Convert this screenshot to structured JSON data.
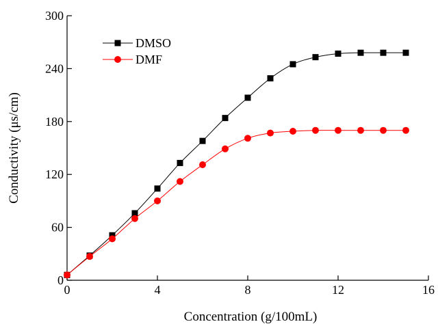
{
  "chart_data": {
    "type": "line",
    "title": "",
    "xlabel": "Concentration (g/100mL)",
    "ylabel": "Conductivity (μs/cm)",
    "xlim": [
      0,
      16
    ],
    "ylim": [
      0,
      300
    ],
    "xticks": [
      0,
      4,
      8,
      12,
      16
    ],
    "yticks": [
      0,
      60,
      120,
      180,
      240,
      300
    ],
    "grid": false,
    "legend_position": "top-left",
    "x": [
      0,
      1,
      2,
      3,
      4,
      5,
      6,
      7,
      8,
      9,
      10,
      11,
      12,
      13,
      14,
      15
    ],
    "series": [
      {
        "name": "DMSO",
        "color": "#000000",
        "marker": "square",
        "values": [
          6,
          28,
          51,
          76,
          104,
          133,
          158,
          184,
          207,
          229,
          245,
          253,
          257,
          258,
          258,
          258
        ]
      },
      {
        "name": "DMF",
        "color": "#ff0000",
        "marker": "circle",
        "values": [
          6,
          27,
          47,
          70,
          90,
          112,
          131,
          149,
          161,
          167,
          169,
          170,
          170,
          170,
          170,
          170
        ]
      }
    ]
  }
}
